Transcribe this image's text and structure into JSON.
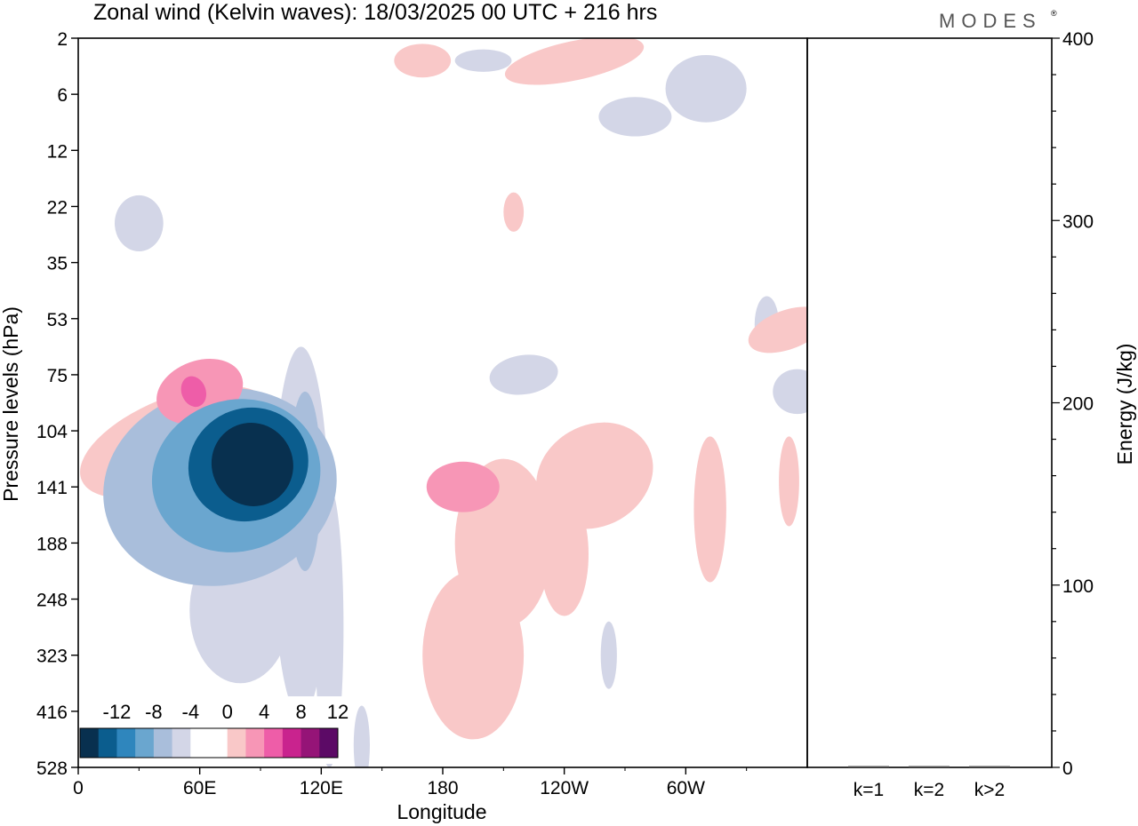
{
  "header": {
    "title": "Zonal wind (Kelvin waves):  18/03/2025  00 UTC  + 216 hrs",
    "brand": "MODES",
    "brand_mark": "®"
  },
  "colors": {
    "neg": [
      "#08304f",
      "#0b5d8e",
      "#2f86bd",
      "#6aa6cf",
      "#a9bedb",
      "#d3d6e7"
    ],
    "zero": "#ffffff",
    "pos": [
      "#f9c8c8",
      "#f796b6",
      "#ee5da8",
      "#c9238e",
      "#951477",
      "#5c0a66"
    ]
  },
  "chart_data": [
    {
      "type": "heatmap",
      "title": "Zonal wind (Kelvin waves):  18/03/2025  00 UTC  + 216 hrs",
      "xlabel": "Longitude",
      "ylabel": "Pressure levels (hPa)",
      "x_ticks": [
        "0",
        "60E",
        "120E",
        "180",
        "120W",
        "60W"
      ],
      "y_ticks": [
        "2",
        "6",
        "12",
        "22",
        "35",
        "53",
        "75",
        "104",
        "141",
        "188",
        "248",
        "323",
        "416",
        "528"
      ],
      "colorbar": {
        "labels": [
          "-12",
          "-8",
          "-4",
          "0",
          "4",
          "8",
          "12"
        ],
        "levels": [
          -14,
          -12,
          -10,
          -8,
          -6,
          -4,
          -2,
          2,
          4,
          6,
          8,
          10,
          12,
          14
        ]
      },
      "features": [
        {
          "lon": 86,
          "level": 7.6,
          "value": -14,
          "rx": 20,
          "ry": 0.75,
          "rot": -28
        },
        {
          "lon": 84,
          "level": 7.6,
          "value": -11,
          "rx": 30,
          "ry": 1.0,
          "rot": -25
        },
        {
          "lon": 78,
          "level": 7.8,
          "value": -8,
          "rx": 42,
          "ry": 1.35,
          "rot": -18
        },
        {
          "lon": 70,
          "level": 8.0,
          "value": -5,
          "rx": 58,
          "ry": 1.75,
          "rot": -12
        },
        {
          "lon": 112,
          "level": 7.9,
          "value": -5,
          "rx": 8,
          "ry": 1.6,
          "rot": 0
        },
        {
          "lon": 110,
          "level": 8.8,
          "value": -3,
          "rx": 14,
          "ry": 3.3,
          "rot": 0
        },
        {
          "lon": 124,
          "level": 10.5,
          "value": -2,
          "rx": 7,
          "ry": 2.5,
          "rot": 0
        },
        {
          "lon": 80,
          "level": 10.2,
          "value": -2,
          "rx": 25,
          "ry": 1.3,
          "rot": 0
        },
        {
          "lon": 60,
          "level": 6.3,
          "value": 5,
          "rx": 22,
          "ry": 0.55,
          "rot": -20
        },
        {
          "lon": 57,
          "level": 6.3,
          "value": 7,
          "rx": 6,
          "ry": 0.28,
          "rot": -20
        },
        {
          "lon": 48,
          "level": 7.2,
          "value": 3,
          "rx": 50,
          "ry": 0.8,
          "rot": -22
        },
        {
          "lon": 30,
          "level": 8.0,
          "value": 3,
          "rx": 10,
          "ry": 0.9,
          "rot": 0
        },
        {
          "lon": 210,
          "level": 9.0,
          "value": 3,
          "rx": 24,
          "ry": 1.5,
          "rot": 0
        },
        {
          "lon": 195,
          "level": 11.0,
          "value": 3,
          "rx": 25,
          "ry": 1.5,
          "rot": 0
        },
        {
          "lon": 255,
          "level": 7.8,
          "value": 3,
          "rx": 30,
          "ry": 0.9,
          "rot": -30
        },
        {
          "lon": 240,
          "level": 9.2,
          "value": 3,
          "rx": 12,
          "ry": 1.1,
          "rot": 0
        },
        {
          "lon": 190,
          "level": 8.0,
          "value": 5,
          "rx": 18,
          "ry": 0.45,
          "rot": 0
        },
        {
          "lon": 312,
          "level": 8.4,
          "value": 3,
          "rx": 8,
          "ry": 1.3,
          "rot": 0
        },
        {
          "lon": 351,
          "level": 7.9,
          "value": 3,
          "rx": 5,
          "ry": 0.8,
          "rot": 0
        },
        {
          "lon": 245,
          "level": 0.4,
          "value": 3,
          "rx": 35,
          "ry": 0.35,
          "rot": -12
        },
        {
          "lon": 170,
          "level": 0.4,
          "value": 3,
          "rx": 14,
          "ry": 0.3,
          "rot": 0
        },
        {
          "lon": 215,
          "level": 3.1,
          "value": 3,
          "rx": 5,
          "ry": 0.35,
          "rot": 0
        },
        {
          "lon": 350,
          "level": 5.2,
          "value": 3,
          "rx": 20,
          "ry": 0.35,
          "rot": -20
        },
        {
          "lon": 310,
          "level": 0.9,
          "value": -3,
          "rx": 20,
          "ry": 0.6,
          "rot": 0
        },
        {
          "lon": 275,
          "level": 1.4,
          "value": -2,
          "rx": 18,
          "ry": 0.35,
          "rot": 0
        },
        {
          "lon": 220,
          "level": 6.0,
          "value": -2,
          "rx": 17,
          "ry": 0.35,
          "rot": -8
        },
        {
          "lon": 200,
          "level": 0.4,
          "value": -2,
          "rx": 14,
          "ry": 0.2,
          "rot": 0
        },
        {
          "lon": 30,
          "level": 3.3,
          "value": -2,
          "rx": 12,
          "ry": 0.5,
          "rot": 0
        },
        {
          "lon": 355,
          "level": 6.3,
          "value": -2,
          "rx": 12,
          "ry": 0.4,
          "rot": 0
        },
        {
          "lon": 340,
          "level": 5.1,
          "value": -2,
          "rx": 6,
          "ry": 0.5,
          "rot": 0
        },
        {
          "lon": 140,
          "level": 12.6,
          "value": -2,
          "rx": 4,
          "ry": 0.7,
          "rot": 0
        },
        {
          "lon": 262,
          "level": 11.0,
          "value": -2,
          "rx": 4,
          "ry": 0.6,
          "rot": 0
        }
      ],
      "panel": {
        "ylabel": "Energy (J/kg)",
        "ylim": [
          0,
          400
        ],
        "y_ticks": [
          "0",
          "100",
          "200",
          "300",
          "400"
        ],
        "categories": [
          "k=1",
          "k=2",
          "k>2"
        ],
        "values": [
          0,
          0,
          0
        ]
      }
    }
  ]
}
